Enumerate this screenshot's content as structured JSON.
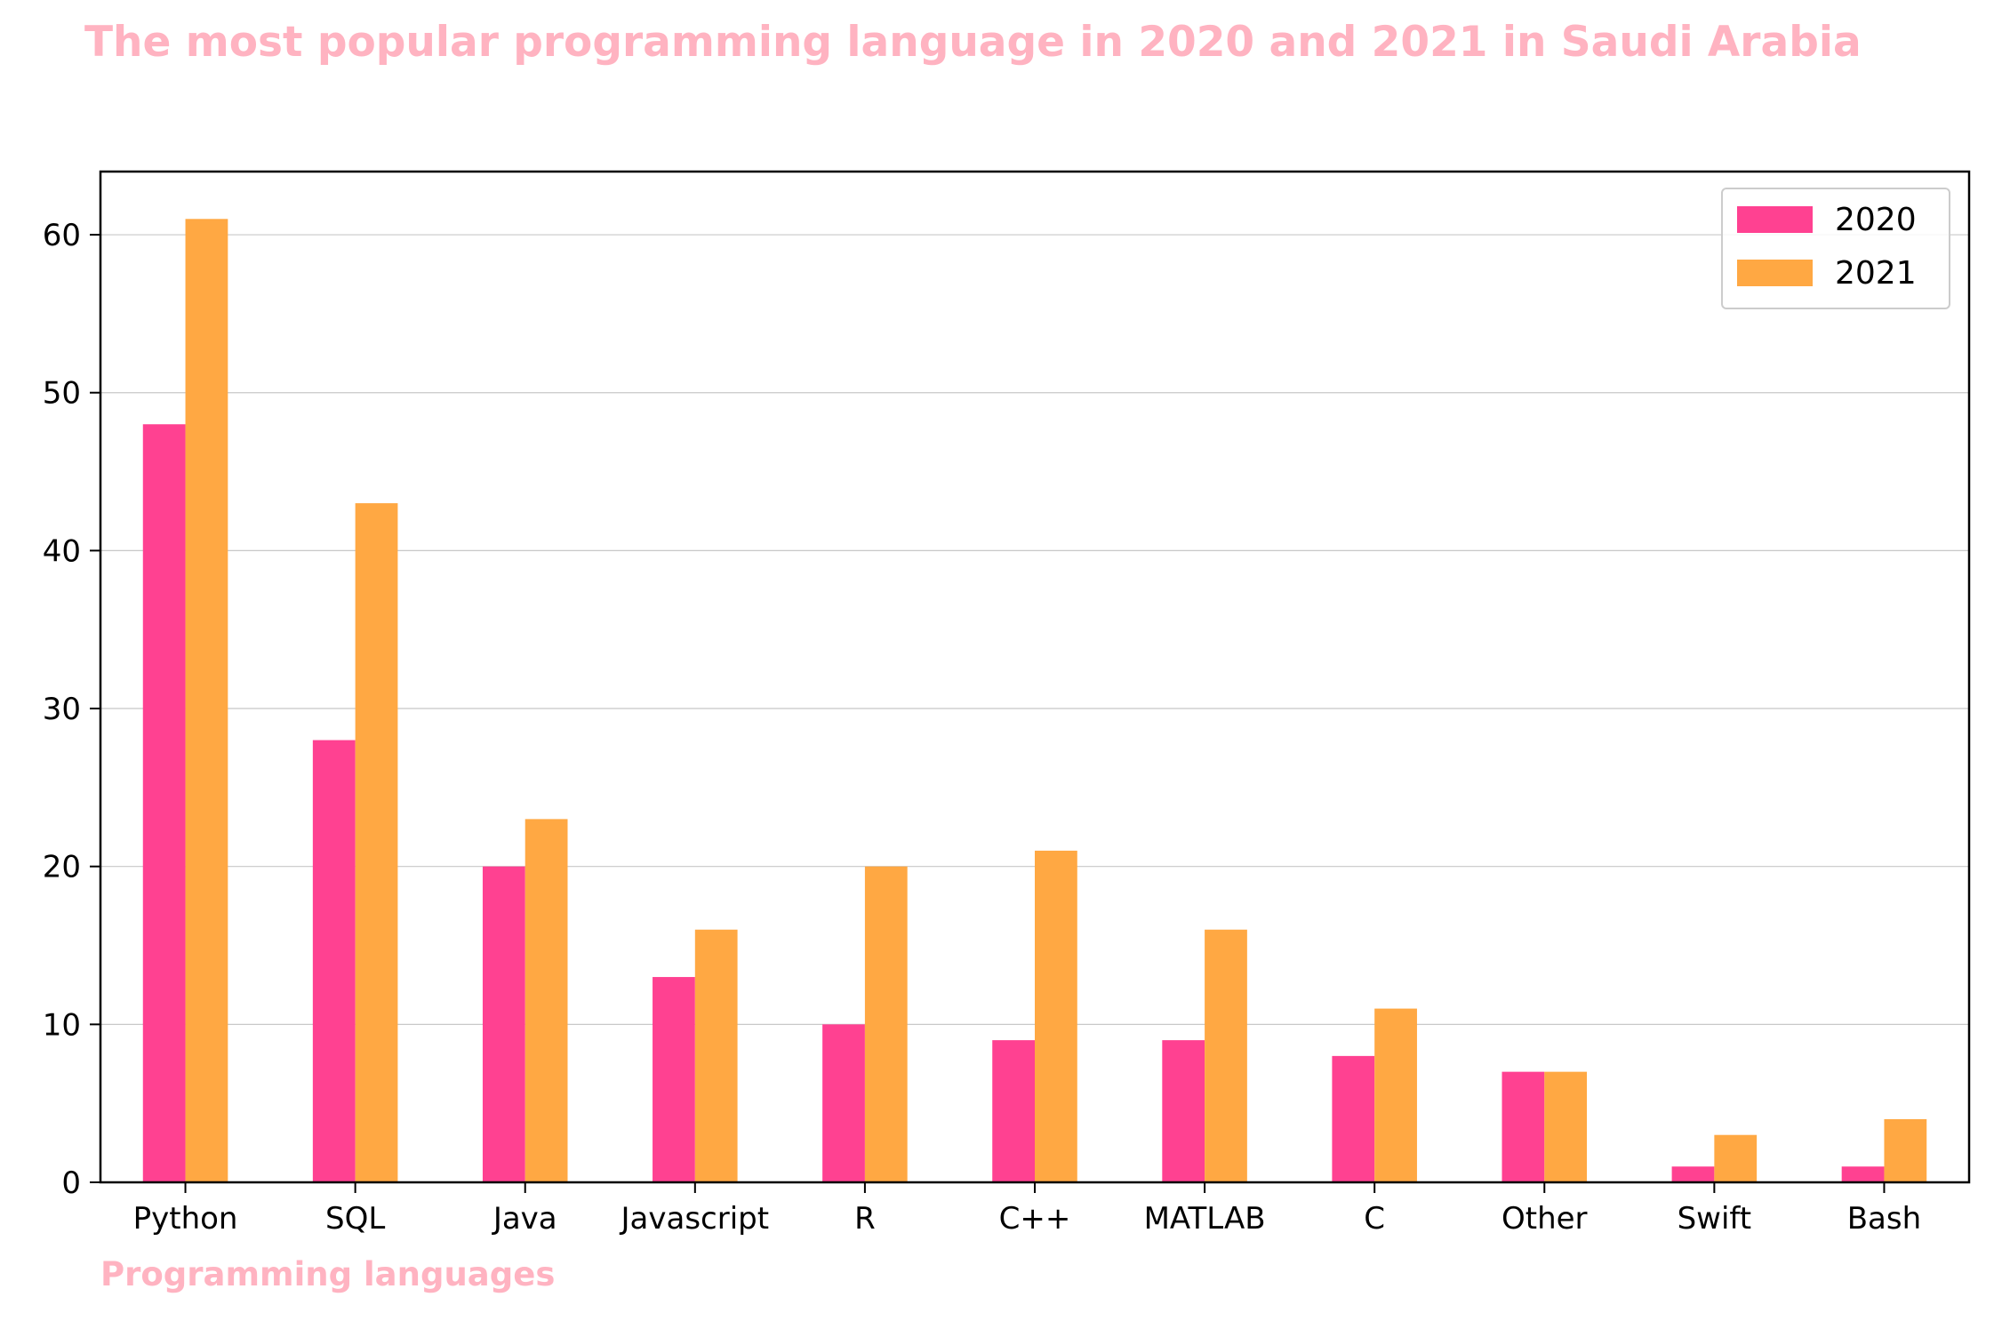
{
  "chart_data": {
    "type": "bar",
    "title": "The most popular programming language in 2020 and 2021 in Saudi Arabia",
    "xlabel": "Programming languages",
    "ylabel": "",
    "categories": [
      "Python",
      "SQL",
      "Java",
      "Javascript",
      "R",
      "C++",
      "MATLAB",
      "C",
      "Other",
      "Swift",
      "Bash"
    ],
    "series": [
      {
        "name": "2020",
        "color": "#ff4191",
        "values": [
          48,
          28,
          20,
          13,
          10,
          9,
          9,
          8,
          7,
          1,
          1
        ]
      },
      {
        "name": "2021",
        "color": "#ffa843",
        "values": [
          61,
          43,
          23,
          16,
          20,
          21,
          16,
          11,
          7,
          3,
          4
        ]
      }
    ],
    "ylim": [
      0,
      64
    ],
    "yticks": [
      0,
      10,
      20,
      30,
      40,
      50,
      60
    ],
    "grid": "horizontal",
    "legend": "top-right",
    "title_color": "#ffb3c1",
    "xlabel_color": "#ffb3c1"
  }
}
